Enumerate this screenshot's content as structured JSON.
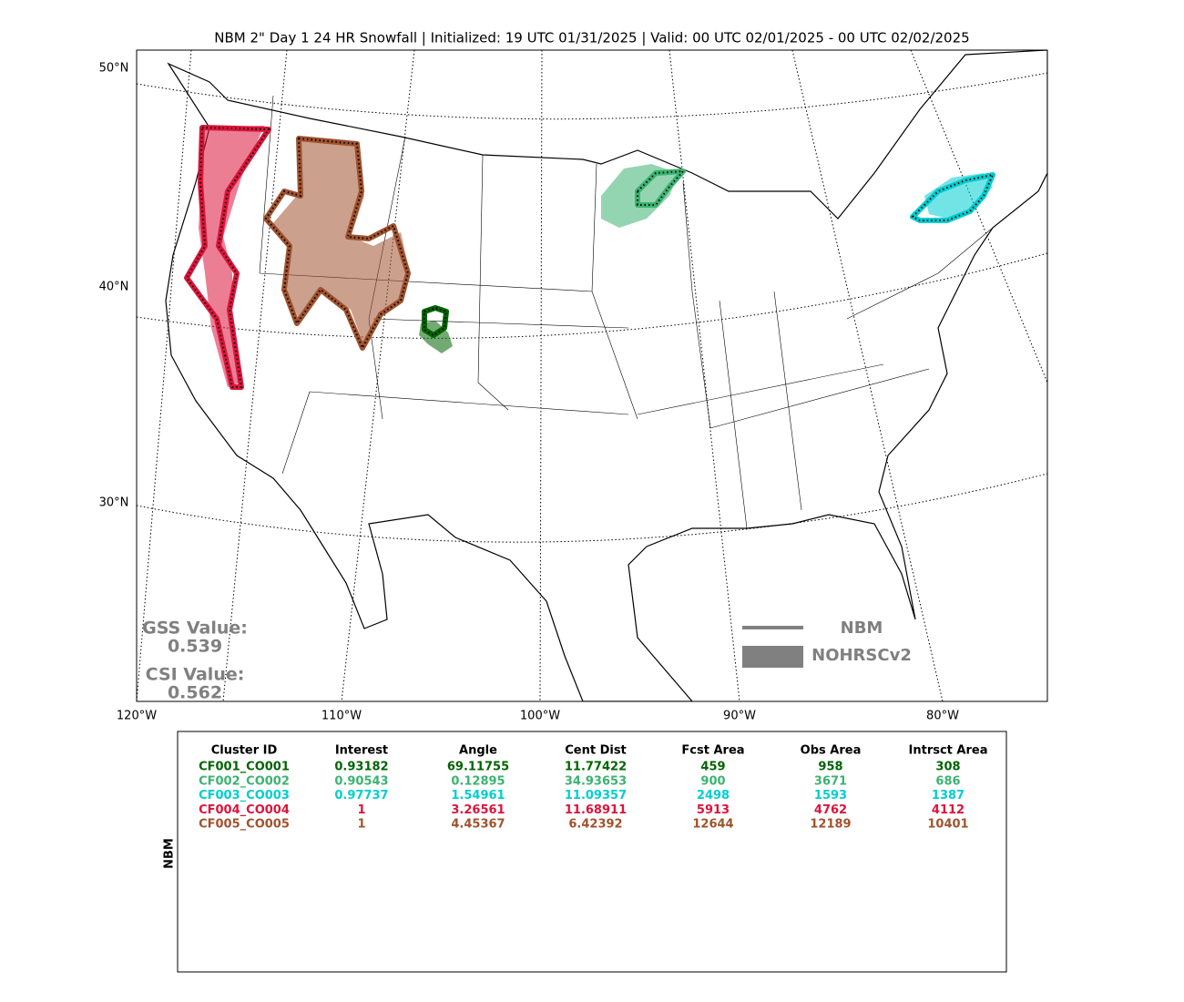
{
  "title": "NBM 2\" Day 1 24 HR Snowfall | Initialized: 19 UTC 01/31/2025 | Valid: 00 UTC 02/01/2025 - 00 UTC 02/02/2025",
  "map": {
    "lat_labels": [
      "50°N",
      "40°N",
      "30°N"
    ],
    "lon_labels": [
      "120°W",
      "110°W",
      "100°W",
      "90°W",
      "80°W"
    ]
  },
  "scores": {
    "gss_label": "GSS Value:",
    "gss_value": "0.539",
    "csi_label": "CSI Value:",
    "csi_value": "0.562"
  },
  "legend": {
    "line_label": "NBM",
    "fill_label": "NOHRSCv2"
  },
  "table": {
    "side_label": "NBM",
    "header": [
      "Cluster ID",
      "Interest",
      "Angle",
      "Cent Dist",
      "Fcst Area",
      "Obs Area",
      "Intrsct Area"
    ],
    "rows": [
      [
        "CF001_CO001",
        "0.93182",
        "69.11755",
        "11.77422",
        "459",
        "958",
        "308"
      ],
      [
        "CF002_CO002",
        "0.90543",
        "0.12895",
        "34.93653",
        "900",
        "3671",
        "686"
      ],
      [
        "CF003_CO003",
        "0.97737",
        "1.54961",
        "11.09357",
        "2498",
        "1593",
        "1387"
      ],
      [
        "CF004_CO004",
        "1",
        "3.26561",
        "11.68911",
        "5913",
        "4762",
        "4112"
      ],
      [
        "CF005_CO005",
        "1",
        "4.45367",
        "6.42392",
        "12644",
        "12189",
        "10401"
      ]
    ],
    "row_colors": [
      "#006400",
      "#3cb371",
      "#00ced1",
      "#dc143c",
      "#a0522d"
    ]
  }
}
